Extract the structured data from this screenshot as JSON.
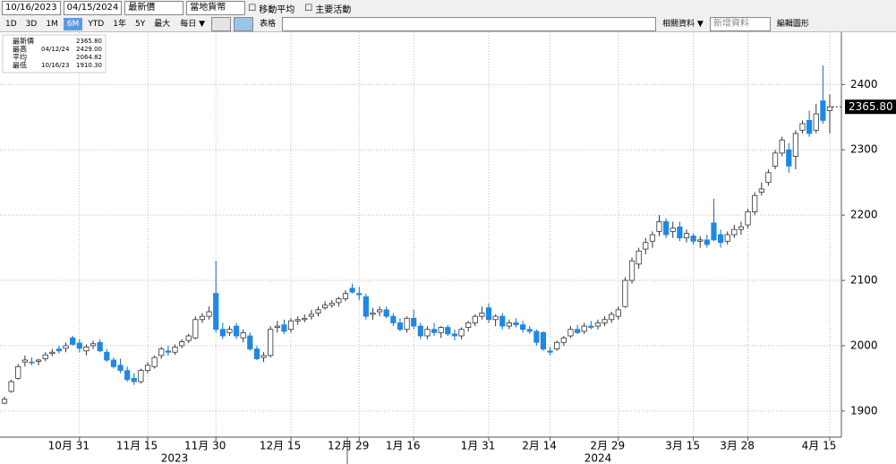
{
  "toolbar": {
    "start_date": "10/16/2023",
    "end_date": "04/15/2024",
    "field": "最新價",
    "currency": "當地貨幣",
    "moving_avg": "移動平均",
    "events": "主要活動",
    "ranges": [
      "1D",
      "3D",
      "1M",
      "6M",
      "YTD",
      "1年",
      "5Y",
      "最大"
    ],
    "active_range": "6M",
    "period": "每日 ▼",
    "table": "表格",
    "related": "相關資料 ▼",
    "add_data": "新增資料",
    "edit": "編輯圖形"
  },
  "chart_data": {
    "type": "candlestick",
    "legend": [
      {
        "name": "最新價",
        "date": null,
        "value": "2365.80"
      },
      {
        "name": "最高",
        "date": "04/12/24",
        "value": "2429.00"
      },
      {
        "name": "平均",
        "date": null,
        "value": "2064.82"
      },
      {
        "name": "最低",
        "date": "10/16/23",
        "value": "1910.30"
      }
    ],
    "last_label": "2365.80",
    "up_color": "#ffffff",
    "down_color": "#1e88e5",
    "grid": true,
    "ylim": [
      1860,
      2480
    ],
    "yticks": [
      1900,
      2000,
      2100,
      2200,
      2300,
      2400
    ],
    "years": [
      "2023",
      "2024"
    ],
    "categories": [
      null,
      null,
      null,
      null,
      null,
      null,
      null,
      null,
      null,
      null,
      null,
      "10月 31",
      null,
      null,
      null,
      null,
      null,
      null,
      null,
      null,
      null,
      "11月 15",
      null,
      null,
      null,
      null,
      null,
      null,
      null,
      null,
      null,
      "11月 30",
      null,
      null,
      null,
      null,
      null,
      null,
      null,
      null,
      null,
      null,
      "12月 15",
      null,
      null,
      null,
      null,
      null,
      null,
      null,
      null,
      null,
      "12月 29",
      null,
      null,
      null,
      null,
      null,
      null,
      null,
      "1月 16",
      null,
      null,
      null,
      null,
      null,
      null,
      null,
      null,
      null,
      null,
      "1月 31",
      null,
      null,
      null,
      null,
      null,
      null,
      null,
      null,
      "2月 14",
      null,
      null,
      null,
      null,
      null,
      null,
      null,
      null,
      null,
      "2月 29",
      null,
      null,
      null,
      null,
      null,
      null,
      null,
      null,
      null,
      null,
      "3月 15",
      null,
      null,
      null,
      null,
      null,
      null,
      null,
      "3月 28",
      null,
      null,
      null,
      null,
      null,
      null,
      null,
      null,
      null,
      null,
      null,
      "4月 15"
    ],
    "ohlc": [
      [
        1912,
        1922,
        1910.3,
        1918
      ],
      [
        1930,
        1948,
        1928,
        1945
      ],
      [
        1950,
        1972,
        1948,
        1968
      ],
      [
        1975,
        1985,
        1968,
        1978
      ],
      [
        1975,
        1982,
        1970,
        1974
      ],
      [
        1976,
        1980,
        1970,
        1978
      ],
      [
        1980,
        1990,
        1976,
        1986
      ],
      [
        1988,
        1995,
        1984,
        1990
      ],
      [
        1995,
        2000,
        1988,
        1992
      ],
      [
        1996,
        2005,
        1990,
        2000
      ],
      [
        2012,
        2015,
        2000,
        2002
      ],
      [
        2004,
        2010,
        1990,
        1996
      ],
      [
        1992,
        2002,
        1985,
        1998
      ],
      [
        2000,
        2008,
        1995,
        2003
      ],
      [
        2005,
        2010,
        1990,
        1992
      ],
      [
        1990,
        1995,
        1975,
        1978
      ],
      [
        1978,
        1982,
        1965,
        1968
      ],
      [
        1970,
        1980,
        1958,
        1962
      ],
      [
        1962,
        1968,
        1945,
        1948
      ],
      [
        1950,
        1958,
        1940,
        1945
      ],
      [
        1945,
        1965,
        1942,
        1962
      ],
      [
        1962,
        1975,
        1958,
        1970
      ],
      [
        1968,
        1985,
        1965,
        1982
      ],
      [
        1985,
        1998,
        1980,
        1995
      ],
      [
        1992,
        2000,
        1985,
        1990
      ],
      [
        1990,
        2002,
        1986,
        1998
      ],
      [
        2000,
        2010,
        1996,
        2006
      ],
      [
        2008,
        2018,
        2004,
        2015
      ],
      [
        2012,
        2045,
        2010,
        2040
      ],
      [
        2040,
        2050,
        2035,
        2045
      ],
      [
        2045,
        2060,
        2040,
        2052
      ],
      [
        2080,
        2130,
        2020,
        2025
      ],
      [
        2025,
        2035,
        2010,
        2015
      ],
      [
        2020,
        2030,
        2015,
        2025
      ],
      [
        2030,
        2035,
        2010,
        2015
      ],
      [
        2012,
        2025,
        2005,
        2020
      ],
      [
        2015,
        2020,
        1992,
        1995
      ],
      [
        1995,
        2000,
        1978,
        1980
      ],
      [
        1982,
        1990,
        1975,
        1985
      ],
      [
        1985,
        2030,
        1982,
        2025
      ],
      [
        2028,
        2038,
        2020,
        2030
      ],
      [
        2032,
        2040,
        2018,
        2022
      ],
      [
        2025,
        2042,
        2020,
        2038
      ],
      [
        2038,
        2045,
        2032,
        2040
      ],
      [
        2040,
        2048,
        2036,
        2042
      ],
      [
        2045,
        2055,
        2040,
        2048
      ],
      [
        2050,
        2060,
        2045,
        2055
      ],
      [
        2058,
        2068,
        2055,
        2062
      ],
      [
        2062,
        2070,
        2058,
        2065
      ],
      [
        2066,
        2075,
        2060,
        2072
      ],
      [
        2072,
        2085,
        2068,
        2080
      ],
      [
        2088,
        2095,
        2080,
        2082
      ],
      [
        2080,
        2090,
        2070,
        2078
      ],
      [
        2075,
        2080,
        2040,
        2045
      ],
      [
        2048,
        2058,
        2040,
        2050
      ],
      [
        2052,
        2060,
        2045,
        2055
      ],
      [
        2055,
        2060,
        2042,
        2045
      ],
      [
        2045,
        2050,
        2030,
        2035
      ],
      [
        2035,
        2042,
        2022,
        2025
      ],
      [
        2025,
        2045,
        2020,
        2042
      ],
      [
        2042,
        2055,
        2025,
        2030
      ],
      [
        2030,
        2035,
        2010,
        2015
      ],
      [
        2015,
        2030,
        2010,
        2025
      ],
      [
        2025,
        2035,
        2015,
        2020
      ],
      [
        2020,
        2030,
        2012,
        2028
      ],
      [
        2028,
        2032,
        2015,
        2018
      ],
      [
        2018,
        2025,
        2008,
        2015
      ],
      [
        2015,
        2028,
        2010,
        2025
      ],
      [
        2028,
        2038,
        2022,
        2035
      ],
      [
        2035,
        2048,
        2030,
        2045
      ],
      [
        2045,
        2060,
        2040,
        2050
      ],
      [
        2058,
        2065,
        2035,
        2040
      ],
      [
        2040,
        2048,
        2030,
        2045
      ],
      [
        2045,
        2050,
        2025,
        2030
      ],
      [
        2030,
        2040,
        2025,
        2035
      ],
      [
        2035,
        2042,
        2028,
        2032
      ],
      [
        2032,
        2038,
        2020,
        2025
      ],
      [
        2025,
        2030,
        2018,
        2022
      ],
      [
        2022,
        2025,
        2000,
        2005
      ],
      [
        2020,
        2022,
        1992,
        1995
      ],
      [
        1992,
        1998,
        1985,
        1990
      ],
      [
        1995,
        2008,
        1992,
        2005
      ],
      [
        2005,
        2015,
        2000,
        2012
      ],
      [
        2015,
        2030,
        2012,
        2025
      ],
      [
        2025,
        2032,
        2018,
        2020
      ],
      [
        2022,
        2035,
        2018,
        2030
      ],
      [
        2030,
        2038,
        2025,
        2028
      ],
      [
        2030,
        2040,
        2025,
        2035
      ],
      [
        2035,
        2045,
        2030,
        2040
      ],
      [
        2040,
        2052,
        2035,
        2048
      ],
      [
        2045,
        2060,
        2040,
        2055
      ],
      [
        2060,
        2105,
        2058,
        2100
      ],
      [
        2100,
        2135,
        2095,
        2130
      ],
      [
        2125,
        2150,
        2118,
        2145
      ],
      [
        2148,
        2165,
        2140,
        2158
      ],
      [
        2160,
        2175,
        2150,
        2170
      ],
      [
        2175,
        2200,
        2168,
        2190
      ],
      [
        2190,
        2195,
        2165,
        2170
      ],
      [
        2175,
        2190,
        2165,
        2180
      ],
      [
        2182,
        2190,
        2160,
        2165
      ],
      [
        2165,
        2178,
        2158,
        2172
      ],
      [
        2168,
        2172,
        2155,
        2160
      ],
      [
        2160,
        2168,
        2150,
        2162
      ],
      [
        2162,
        2170,
        2150,
        2155
      ],
      [
        2188,
        2225,
        2160,
        2162
      ],
      [
        2170,
        2178,
        2150,
        2158
      ],
      [
        2160,
        2175,
        2155,
        2170
      ],
      [
        2170,
        2185,
        2165,
        2178
      ],
      [
        2178,
        2190,
        2170,
        2182
      ],
      [
        2185,
        2210,
        2180,
        2205
      ],
      [
        2205,
        2235,
        2200,
        2230
      ],
      [
        2235,
        2250,
        2230,
        2240
      ],
      [
        2250,
        2270,
        2245,
        2265
      ],
      [
        2275,
        2300,
        2270,
        2295
      ],
      [
        2295,
        2320,
        2290,
        2315
      ],
      [
        2300,
        2310,
        2265,
        2275
      ],
      [
        2290,
        2330,
        2270,
        2325
      ],
      [
        2330,
        2345,
        2325,
        2340
      ],
      [
        2345,
        2360,
        2320,
        2325
      ],
      [
        2330,
        2370,
        2325,
        2355
      ],
      [
        2375,
        2429,
        2340,
        2345
      ],
      [
        2360,
        2385,
        2325,
        2365.8
      ]
    ]
  }
}
